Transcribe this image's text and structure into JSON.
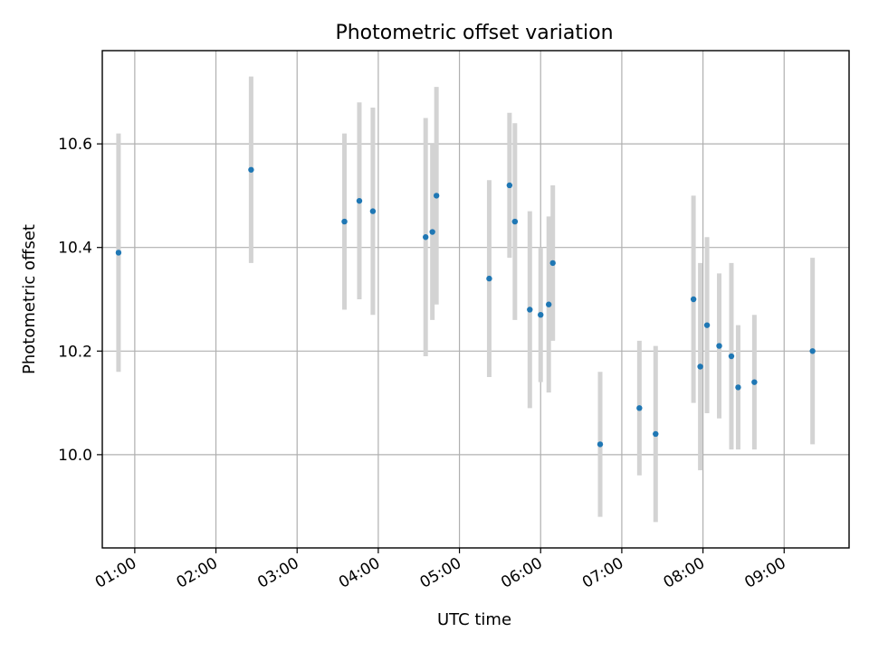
{
  "chart_data": {
    "type": "scatter",
    "title": "Photometric offset variation",
    "xlabel": "UTC time",
    "ylabel": "Photometric offset",
    "x_axis_kind": "time",
    "xlim": [
      "00:36",
      "09:48"
    ],
    "ylim": [
      9.82,
      10.78
    ],
    "xticks": [
      "01:00",
      "02:00",
      "03:00",
      "04:00",
      "05:00",
      "06:00",
      "07:00",
      "08:00",
      "09:00"
    ],
    "yticks": [
      10.0,
      10.2,
      10.4,
      10.6
    ],
    "ytick_labels": [
      "10.0",
      "10.2",
      "10.4",
      "10.6"
    ],
    "grid": true,
    "colors": {
      "points": "#1f77b4",
      "errorbars": "#d3d3d3",
      "grid": "#b0b0b0"
    },
    "points": [
      {
        "x": "00:48",
        "y": 10.39,
        "err": 0.23
      },
      {
        "x": "02:26",
        "y": 10.55,
        "err": 0.18
      },
      {
        "x": "03:35",
        "y": 10.45,
        "err": 0.17
      },
      {
        "x": "03:46",
        "y": 10.49,
        "err": 0.19
      },
      {
        "x": "03:56",
        "y": 10.47,
        "err": 0.2
      },
      {
        "x": "04:35",
        "y": 10.42,
        "err": 0.23
      },
      {
        "x": "04:40",
        "y": 10.43,
        "err": 0.17
      },
      {
        "x": "04:43",
        "y": 10.5,
        "err": 0.21
      },
      {
        "x": "05:22",
        "y": 10.34,
        "err": 0.19
      },
      {
        "x": "05:37",
        "y": 10.52,
        "err": 0.14
      },
      {
        "x": "05:41",
        "y": 10.45,
        "err": 0.19
      },
      {
        "x": "05:52",
        "y": 10.28,
        "err": 0.19
      },
      {
        "x": "06:00",
        "y": 10.27,
        "err": 0.13
      },
      {
        "x": "06:06",
        "y": 10.29,
        "err": 0.17
      },
      {
        "x": "06:09",
        "y": 10.37,
        "err": 0.15
      },
      {
        "x": "06:44",
        "y": 10.02,
        "err": 0.14
      },
      {
        "x": "07:13",
        "y": 10.09,
        "err": 0.13
      },
      {
        "x": "07:25",
        "y": 10.04,
        "err": 0.17
      },
      {
        "x": "07:53",
        "y": 10.3,
        "err": 0.2
      },
      {
        "x": "07:58",
        "y": 10.17,
        "err": 0.2
      },
      {
        "x": "08:03",
        "y": 10.25,
        "err": 0.17
      },
      {
        "x": "08:12",
        "y": 10.21,
        "err": 0.14
      },
      {
        "x": "08:21",
        "y": 10.19,
        "err": 0.18
      },
      {
        "x": "08:26",
        "y": 10.13,
        "err": 0.12
      },
      {
        "x": "08:38",
        "y": 10.14,
        "err": 0.13
      },
      {
        "x": "09:21",
        "y": 10.2,
        "err": 0.18
      }
    ]
  }
}
